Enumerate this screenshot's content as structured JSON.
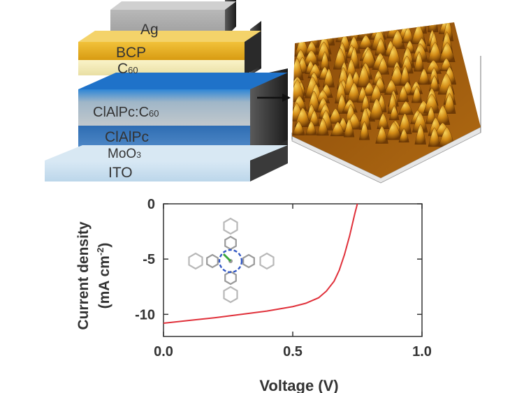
{
  "stack": {
    "layers": [
      {
        "id": "ag",
        "label": "Ag"
      },
      {
        "id": "bcp",
        "label": "BCP"
      },
      {
        "id": "c60",
        "label": "C",
        "sub": "60"
      },
      {
        "id": "blend",
        "label": "ClAlPc:C",
        "sub": "60"
      },
      {
        "id": "clalpc",
        "label": "ClAlPc"
      },
      {
        "id": "moo3",
        "label": "MoO",
        "sub": "3"
      },
      {
        "id": "ito",
        "label": "ITO"
      }
    ]
  },
  "chart_data": {
    "type": "line",
    "xlabel": "Voltage (V)",
    "ylabel": "Current density",
    "ylabel_unit": "(mA cm",
    "ylabel_unit_sup": "-2",
    "ylabel_unit_end": ")",
    "xlim": [
      0.0,
      1.0
    ],
    "ylim": [
      -12.0,
      0.0
    ],
    "x_ticks": [
      "0.0",
      "0.5",
      "1.0"
    ],
    "x_tick_values": [
      0.0,
      0.5,
      1.0
    ],
    "y_ticks": [
      "0",
      "-5",
      "-10"
    ],
    "y_tick_values": [
      0,
      -5,
      -10
    ],
    "grid": false,
    "series": [
      {
        "color": "#e0303a",
        "x": [
          0.0,
          0.1,
          0.2,
          0.3,
          0.4,
          0.5,
          0.55,
          0.6,
          0.63,
          0.66,
          0.68,
          0.7,
          0.72,
          0.74,
          0.75
        ],
        "y": [
          -10.8,
          -10.55,
          -10.3,
          -10.0,
          -9.7,
          -9.3,
          -9.0,
          -8.5,
          -7.9,
          -7.0,
          -6.0,
          -4.6,
          -2.9,
          -0.9,
          0.0
        ]
      }
    ]
  }
}
